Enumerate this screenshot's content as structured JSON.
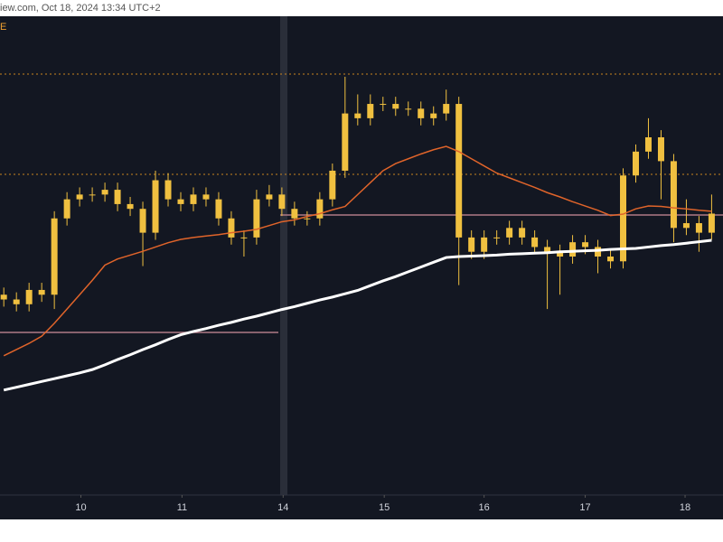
{
  "chart_data": {
    "type": "candlestick",
    "header": "iew.com, Oct 18, 2024 13:34 UTC+2",
    "corner_label": "E",
    "xlim": [
      -0.3,
      56.9
    ],
    "ylim": [
      0,
      100
    ],
    "xticks": [
      {
        "value": 6.1,
        "label": "10"
      },
      {
        "value": 14.1,
        "label": "11"
      },
      {
        "value": 22.1,
        "label": "14"
      },
      {
        "value": 30.1,
        "label": "15"
      },
      {
        "value": 38,
        "label": "16"
      },
      {
        "value": 46,
        "label": "17"
      },
      {
        "value": 53.9,
        "label": "18"
      }
    ],
    "color": "#f0c040",
    "candles": {
      "open": [
        42,
        41,
        40,
        43,
        42,
        58,
        62,
        63,
        63,
        64,
        61,
        60,
        55,
        66,
        62,
        61,
        63,
        62,
        58,
        54,
        54,
        62,
        63,
        60,
        58,
        58,
        62,
        68,
        80,
        79,
        82,
        82,
        81,
        81,
        79,
        80,
        82,
        54,
        51,
        54,
        54,
        56,
        54,
        52,
        51,
        50,
        53,
        52,
        50,
        49,
        67,
        72,
        75,
        70,
        56,
        57,
        55
      ],
      "high": [
        43.5,
        42.5,
        44.5,
        44.5,
        59.5,
        63.5,
        64.5,
        64.5,
        65.5,
        65.5,
        62.5,
        61.5,
        68,
        67.5,
        63.5,
        64.5,
        64.5,
        63.5,
        59.5,
        55.5,
        64,
        65,
        64.5,
        61.5,
        59.5,
        63.5,
        69.5,
        87.7,
        84,
        84,
        83.5,
        83.5,
        82.5,
        82.5,
        81.5,
        85,
        83.5,
        55.5,
        55.5,
        55.5,
        57.5,
        57.5,
        55.5,
        53.5,
        52.5,
        54.5,
        54.5,
        53.5,
        51.5,
        68.5,
        73.5,
        79,
        76.5,
        71.5,
        62,
        58.5,
        63
      ],
      "low": [
        39.5,
        38.5,
        38.5,
        40.5,
        39,
        56.5,
        60.5,
        61.5,
        61.5,
        59.5,
        58.5,
        48,
        53.5,
        60.5,
        59.5,
        59.5,
        60.5,
        56.5,
        52.5,
        50,
        52.5,
        60.5,
        58.5,
        56.5,
        56.5,
        56.5,
        60.5,
        66.5,
        77.5,
        77.5,
        80.5,
        79.5,
        79.5,
        77.5,
        77.5,
        78.5,
        44,
        49.5,
        49.5,
        52.5,
        52.5,
        52.5,
        50.5,
        39,
        42,
        48.5,
        50.5,
        46.5,
        47.5,
        47.5,
        65.5,
        70.5,
        62,
        53,
        54.5,
        51,
        53.5
      ],
      "close": [
        41,
        40,
        43,
        42,
        58,
        62,
        63,
        63,
        64,
        61,
        60,
        55,
        66,
        62,
        61,
        63,
        62,
        58,
        54,
        54,
        62,
        63,
        60,
        58,
        58,
        62,
        68,
        80,
        79,
        82,
        82,
        81,
        81,
        79,
        80,
        82,
        54,
        51,
        54,
        54,
        56,
        54,
        52,
        51,
        50,
        53,
        52,
        50,
        49,
        67,
        72,
        75,
        70,
        56,
        57,
        55,
        59
      ]
    },
    "lines": [
      {
        "color": "#e0642a",
        "values": [
          29.2,
          30.5,
          31.8,
          33.3,
          36,
          39,
          42,
          45,
          48.2,
          49.5,
          50.3,
          51.1,
          52,
          52.9,
          53.6,
          54,
          54.3,
          54.6,
          55,
          55.3,
          55.7,
          56.5,
          57.3,
          57.7,
          58.4,
          59,
          59.8,
          60.5,
          63,
          65.5,
          68,
          69.5,
          70.5,
          71.5,
          72.4,
          73.1,
          72,
          70.5,
          69,
          67.5,
          66.5,
          65.5,
          64.5,
          63.4,
          62.5,
          61.5,
          60.6,
          59.7,
          58.6,
          58.9,
          60,
          60.6,
          60.5,
          60.2,
          60,
          59.7,
          59.5
        ]
      },
      {
        "color": "#ffffff",
        "values": [
          22.0,
          22.6,
          23.2,
          23.8,
          24.4,
          25.0,
          25.6,
          26.3,
          27.3,
          28.4,
          29.4,
          30.5,
          31.5,
          32.6,
          33.6,
          34.3,
          34.9,
          35.6,
          36.2,
          36.9,
          37.5,
          38.2,
          38.9,
          39.5,
          40.2,
          40.9,
          41.5,
          42.2,
          42.9,
          43.9,
          44.9,
          45.8,
          46.8,
          47.8,
          48.8,
          49.8,
          50.0,
          50.1,
          50.2,
          50.3,
          50.5,
          50.6,
          50.7,
          50.8,
          51.0,
          51.1,
          51.2,
          51.3,
          51.5,
          51.6,
          51.7,
          52.0,
          52.3,
          52.5,
          52.8,
          53.1,
          53.4
        ]
      }
    ]
  }
}
